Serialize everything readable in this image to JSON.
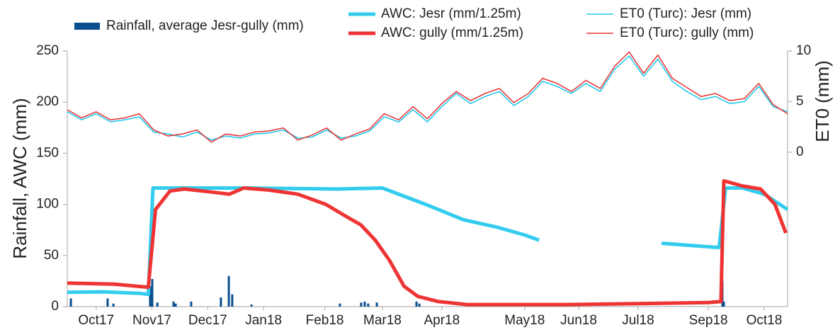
{
  "chart_data": {
    "type": "combo",
    "ylabel": "Rainfall, AWC (mm)",
    "y2label": "ET0 (mm)",
    "xlim": [
      0,
      400
    ],
    "ylim": [
      0,
      250
    ],
    "yticks": [
      0,
      50,
      100,
      150,
      200,
      250
    ],
    "y2lim": [
      -15.25,
      10
    ],
    "y2ticks": [
      0,
      5,
      10
    ],
    "xticks": [
      {
        "value": 16,
        "label": "Oct17"
      },
      {
        "value": 47,
        "label": "Nov17"
      },
      {
        "value": 78,
        "label": "Dec17"
      },
      {
        "value": 109,
        "label": "Jan18"
      },
      {
        "value": 143,
        "label": "Feb18"
      },
      {
        "value": 175,
        "label": "Mar18"
      },
      {
        "value": 208,
        "label": "Apr18"
      },
      {
        "value": 254,
        "label": "May18"
      },
      {
        "value": 284,
        "label": "Jun18"
      },
      {
        "value": 317,
        "label": "Jul18"
      },
      {
        "value": 356,
        "label": "Sep18"
      },
      {
        "value": 387,
        "label": "Oct18"
      }
    ],
    "series": [
      {
        "name": "Rainfall, average Jesr-gully (mm)",
        "type": "bar",
        "color": "#0b4f8f",
        "x": [
          2,
          22.4,
          25.6,
          46,
          47.2,
          50,
          59,
          60.2,
          68.8,
          85.3,
          89.7,
          91.6,
          102.3,
          151.4,
          163.2,
          165.2,
          167.1,
          171.9,
          193.9,
          195.5,
          363.8,
          364.6
        ],
        "values": [
          8,
          8,
          3,
          20,
          27,
          4,
          5,
          3,
          5,
          9,
          30,
          12,
          2,
          3,
          4,
          5,
          3,
          4,
          5,
          3,
          25,
          5
        ]
      },
      {
        "name": "AWC: Jesr (mm/1.25m)",
        "type": "line",
        "width": 5,
        "color": "#33ccee",
        "x": [
          0,
          20,
          40,
          45,
          47.6,
          100,
          150,
          175,
          199,
          220,
          238,
          254,
          262,
          300,
          330,
          345,
          360,
          362,
          365.6,
          375,
          387,
          400
        ],
        "values": [
          14,
          14.5,
          13,
          12,
          116,
          116,
          115,
          116,
          100,
          85,
          78,
          70,
          65,
          null,
          62,
          60,
          58,
          58,
          116,
          116,
          110,
          95
        ]
      },
      {
        "name": "AWC: gully (mm/1.25m)",
        "type": "line",
        "width": 5,
        "color": "#ee3333",
        "x": [
          0,
          26,
          45,
          49,
          57,
          65,
          80.6,
          90,
          98,
          112,
          128,
          143.6,
          155,
          163,
          171,
          179,
          187,
          194.7,
          206,
          222,
          277,
          317,
          356,
          363,
          364.6,
          375,
          385,
          393,
          399
        ],
        "values": [
          23,
          22,
          19,
          95,
          113,
          115,
          112,
          110,
          116,
          114,
          110,
          100,
          88,
          80,
          65,
          45,
          20,
          10,
          5,
          2,
          2,
          3,
          4,
          5,
          123,
          118,
          115,
          100,
          72
        ]
      },
      {
        "name": "ET0 (Turc): Jesr (mm)",
        "type": "line",
        "axis": "y2",
        "width": 1.6,
        "color": "#22c8ee",
        "x": [
          0,
          8,
          16,
          24,
          32,
          40,
          48,
          56,
          64,
          72,
          80,
          88,
          96,
          104,
          112,
          120,
          128,
          136,
          144,
          152,
          160,
          168,
          176,
          184,
          192,
          200,
          208,
          216,
          224,
          232,
          240,
          248,
          256,
          264,
          272,
          280,
          288,
          296,
          304,
          312,
          320,
          328,
          336,
          344,
          352,
          360,
          368,
          376,
          384,
          392,
          400
        ],
        "values": [
          4.0,
          3.2,
          3.8,
          3.0,
          3.2,
          3.5,
          2.0,
          1.8,
          1.5,
          2.0,
          1.2,
          1.6,
          1.4,
          1.8,
          1.9,
          2.2,
          1.4,
          1.5,
          2.2,
          1.4,
          1.6,
          2.1,
          3.5,
          3.0,
          4.2,
          3.0,
          4.5,
          5.8,
          4.8,
          5.5,
          6.0,
          4.6,
          5.5,
          7.0,
          6.5,
          5.8,
          6.8,
          6.0,
          8.2,
          9.5,
          7.5,
          9.2,
          7.0,
          6.0,
          5.2,
          5.5,
          4.8,
          5.0,
          6.5,
          4.5,
          4.0
        ]
      },
      {
        "name": "ET0 (Turc): gully (mm)",
        "type": "line",
        "axis": "y2",
        "width": 1.6,
        "color": "#e83a3a",
        "x": [
          0,
          8,
          16,
          24,
          32,
          40,
          48,
          56,
          64,
          72,
          80,
          88,
          96,
          104,
          112,
          120,
          128,
          136,
          144,
          152,
          160,
          168,
          176,
          184,
          192,
          200,
          208,
          216,
          224,
          232,
          240,
          248,
          256,
          264,
          272,
          280,
          288,
          296,
          304,
          312,
          320,
          328,
          336,
          344,
          352,
          360,
          368,
          376,
          384,
          392,
          400
        ],
        "values": [
          4.2,
          3.4,
          4.0,
          3.2,
          3.4,
          3.8,
          2.2,
          1.6,
          1.8,
          2.2,
          1.0,
          1.8,
          1.6,
          2.0,
          2.1,
          2.4,
          1.2,
          1.7,
          2.4,
          1.2,
          1.8,
          2.3,
          3.8,
          3.2,
          4.5,
          3.3,
          4.8,
          6.0,
          5.1,
          5.8,
          6.3,
          4.9,
          5.8,
          7.3,
          6.8,
          6.0,
          7.1,
          6.3,
          8.5,
          9.9,
          7.8,
          9.6,
          7.3,
          6.4,
          5.5,
          5.8,
          5.1,
          5.3,
          6.8,
          4.7,
          3.8
        ]
      }
    ]
  }
}
